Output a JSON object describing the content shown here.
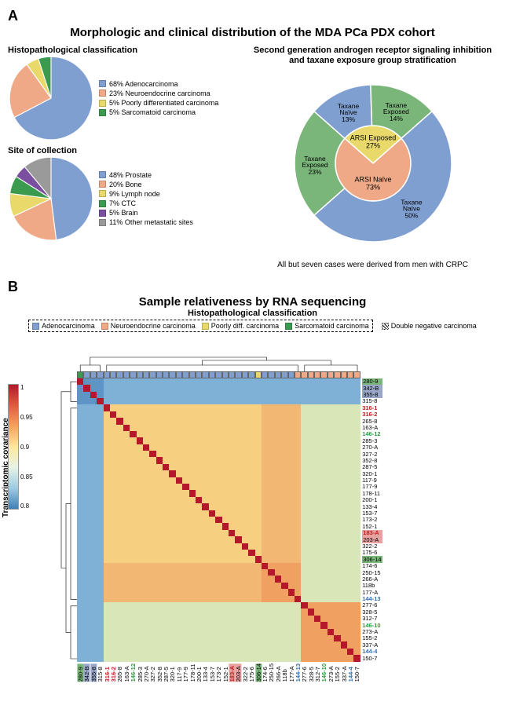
{
  "panelA": {
    "label": "A",
    "title": "Morphologic and clinical distribution of the MDA PCa PDX cohort",
    "histo": {
      "title": "Histopathological classification",
      "slices": [
        {
          "label": "68% Adenocarcinoma",
          "value": 68,
          "color": "#7f9fd1"
        },
        {
          "label": "23% Neuroendocrine carcinoma",
          "value": 23,
          "color": "#f0a987"
        },
        {
          "label": "5% Poorly differentiated carcinoma",
          "value": 5,
          "color": "#e9d96a"
        },
        {
          "label": "5% Sarcomatoid carcinoma",
          "value": 5,
          "color": "#3a9b4e"
        }
      ]
    },
    "site": {
      "title": "Site of collection",
      "slices": [
        {
          "label": "48% Prostate",
          "value": 48,
          "color": "#7f9fd1"
        },
        {
          "label": "20% Bone",
          "value": 20,
          "color": "#f0a987"
        },
        {
          "label": "9% Lymph node",
          "value": 9,
          "color": "#e9d96a"
        },
        {
          "label": "7% CTC",
          "value": 7,
          "color": "#3a9b4e"
        },
        {
          "label": "5% Brain",
          "value": 5,
          "color": "#7a4fa0"
        },
        {
          "label": "11% Other metastatic sites",
          "value": 11,
          "color": "#9a9a9a"
        }
      ]
    },
    "right": {
      "title": "Second generation androgen receptor signaling inhibition and taxane exposure group stratification",
      "inner": [
        {
          "label": "ARSI Exposed",
          "pct": "27%",
          "value": 27,
          "color": "#e9d96a"
        },
        {
          "label": "ARSI Naïve",
          "pct": "73%",
          "value": 73,
          "color": "#f0a987"
        }
      ],
      "outer": [
        {
          "label": "Taxane Exposed",
          "pct": "23%",
          "value": 23,
          "color": "#7ab57a",
          "parent": 1
        },
        {
          "label": "Taxane Naïve",
          "pct": "50%",
          "value": 50,
          "color": "#7f9fd1",
          "parent": 1
        },
        {
          "label": "Taxane Naïve",
          "pct": "13%",
          "value": 13,
          "color": "#7f9fd1",
          "parent": 0
        },
        {
          "label": "Taxane Exposed",
          "pct": "14%",
          "value": 14,
          "color": "#7ab57a",
          "parent": 0
        }
      ],
      "footnote": "All but seven cases were derived from men with CRPC"
    }
  },
  "panelB": {
    "label": "B",
    "title": "Sample relativeness by RNA sequencing",
    "subtitle": "Histopathological classification",
    "legend": [
      {
        "label": "Adenocarcinoma",
        "color": "#7f9fd1"
      },
      {
        "label": "Neuroendocrine carcinoma",
        "color": "#f0a987"
      },
      {
        "label": "Poorly diff. carcinoma",
        "color": "#e9d96a"
      },
      {
        "label": "Sarcomatoid carcinoma",
        "color": "#3a9b4e"
      }
    ],
    "extraLegend": {
      "label": "Double negative carcinoma",
      "pattern": "hatch"
    },
    "colorbar": {
      "label": "Transcriptomic covariance",
      "ticks": [
        "1",
        "0.95",
        "0.9",
        "0.85",
        "0.8"
      ],
      "colors_top_to_bottom": [
        "#b5182b",
        "#e35b3d",
        "#f8a15a",
        "#fee89a",
        "#e7f3e6",
        "#9dcbe1",
        "#3f7fb7"
      ]
    },
    "samples": [
      {
        "id": "280-9",
        "class": 3,
        "hl": "#7ab57a"
      },
      {
        "id": "342-B",
        "class": 0,
        "hl": "#9aa7c9"
      },
      {
        "id": "355-8",
        "class": 0,
        "hl": "#9aa7c9"
      },
      {
        "id": "315-8",
        "class": 0,
        "hl": null
      },
      {
        "id": "316-1",
        "class": 0,
        "hl": null,
        "txt": "#c02020",
        "bold": true
      },
      {
        "id": "316-2",
        "class": 0,
        "hl": null,
        "txt": "#c02020",
        "bold": true
      },
      {
        "id": "265-8",
        "class": 0,
        "hl": null
      },
      {
        "id": "163-A",
        "class": 0,
        "hl": null
      },
      {
        "id": "146-12",
        "class": 0,
        "hl": null,
        "txt": "#2e9b3e",
        "bold": true
      },
      {
        "id": "285-3",
        "class": 0,
        "hl": null
      },
      {
        "id": "270-A",
        "class": 0,
        "hl": null
      },
      {
        "id": "327-2",
        "class": 0,
        "hl": null
      },
      {
        "id": "352-8",
        "class": 0,
        "hl": null
      },
      {
        "id": "287-5",
        "class": 0,
        "hl": null
      },
      {
        "id": "320-1",
        "class": 0,
        "hl": null
      },
      {
        "id": "117-9",
        "class": 0,
        "hl": null
      },
      {
        "id": "177-9",
        "class": 0,
        "hl": null
      },
      {
        "id": "178-11",
        "class": 0,
        "hl": null
      },
      {
        "id": "200-1",
        "class": 0,
        "hl": null
      },
      {
        "id": "133-4",
        "class": 0,
        "hl": null
      },
      {
        "id": "153-7",
        "class": 0,
        "hl": null
      },
      {
        "id": "173-2",
        "class": 0,
        "hl": null
      },
      {
        "id": "152-1",
        "class": 0,
        "hl": null
      },
      {
        "id": "183-A",
        "class": 0,
        "hl": "#e9a0a0",
        "txt": "#c02020",
        "bold": true
      },
      {
        "id": "203-A",
        "class": 0,
        "hl": "#e9a0a0"
      },
      {
        "id": "322-2",
        "class": 0,
        "hl": null
      },
      {
        "id": "175-6",
        "class": 0,
        "hl": null
      },
      {
        "id": "306-14",
        "class": 2,
        "hl": "#7ab57a"
      },
      {
        "id": "174-6",
        "class": 0,
        "hl": null
      },
      {
        "id": "250-15",
        "class": 0,
        "hl": null
      },
      {
        "id": "266-A",
        "class": 0,
        "hl": null
      },
      {
        "id": "118b",
        "class": 0,
        "hl": null
      },
      {
        "id": "177-A",
        "class": 0,
        "hl": null
      },
      {
        "id": "144-13",
        "class": 1,
        "hl": null,
        "txt": "#3071b5",
        "bold": true
      },
      {
        "id": "277-6",
        "class": 1,
        "hl": null
      },
      {
        "id": "328-5",
        "class": 1,
        "hl": null
      },
      {
        "id": "312-7",
        "class": 1,
        "hl": null
      },
      {
        "id": "146-10",
        "class": 1,
        "hl": null,
        "txt": "#2e9b3e",
        "bold": true
      },
      {
        "id": "273-A",
        "class": 1,
        "hl": null
      },
      {
        "id": "155-2",
        "class": 1,
        "hl": null
      },
      {
        "id": "337-A",
        "class": 1,
        "hl": null
      },
      {
        "id": "144-4",
        "class": 1,
        "hl": null,
        "txt": "#3071b5",
        "bold": true
      },
      {
        "id": "150-7",
        "class": 1,
        "hl": null
      }
    ],
    "classColors": [
      "#7f9fd1",
      "#f0a987",
      "#e9d96a",
      "#3a9b4e"
    ],
    "heat": {
      "diag": "#b5182b",
      "blocks": [
        {
          "r0": 0,
          "r1": 3,
          "c0": 0,
          "c1": 3,
          "color": "#5f94c7"
        },
        {
          "r0": 0,
          "r1": 3,
          "c0": 4,
          "c1": 42,
          "color": "#7fb0d6"
        },
        {
          "r0": 4,
          "r1": 42,
          "c0": 0,
          "c1": 3,
          "color": "#7fb0d6"
        },
        {
          "r0": 4,
          "r1": 27,
          "c0": 4,
          "c1": 27,
          "color": "#f7cf80"
        },
        {
          "r0": 4,
          "r1": 27,
          "c0": 28,
          "c1": 33,
          "color": "#f2b873"
        },
        {
          "r0": 28,
          "r1": 33,
          "c0": 4,
          "c1": 27,
          "color": "#f2b873"
        },
        {
          "r0": 28,
          "r1": 33,
          "c0": 28,
          "c1": 33,
          "color": "#f0a060"
        },
        {
          "r0": 4,
          "r1": 33,
          "c0": 34,
          "c1": 42,
          "color": "#d9e7b8"
        },
        {
          "r0": 34,
          "r1": 42,
          "c0": 4,
          "c1": 33,
          "color": "#d9e7b8"
        },
        {
          "r0": 34,
          "r1": 42,
          "c0": 34,
          "c1": 42,
          "color": "#f0a060"
        }
      ]
    },
    "cellSize": 8.4
  }
}
